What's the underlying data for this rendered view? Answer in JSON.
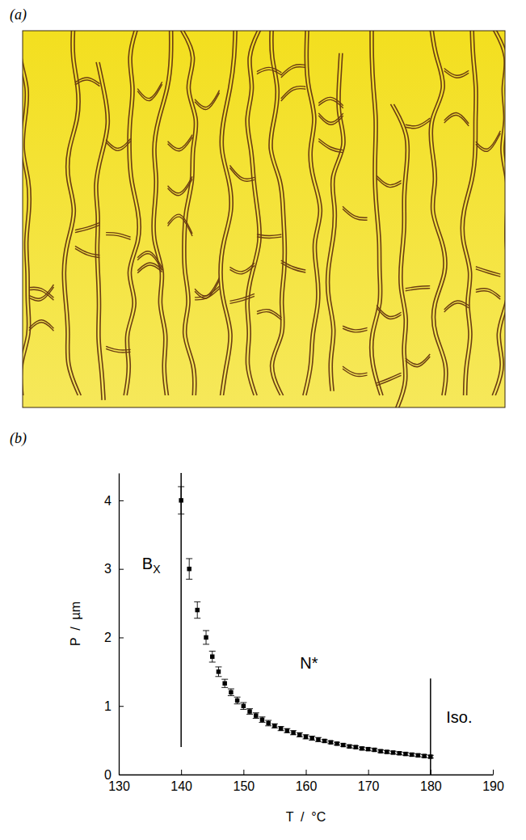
{
  "panel_a": {
    "label": "(a)"
  },
  "chart_data": {
    "type": "scatter",
    "title": "(b)",
    "x_label": "T  /  °C",
    "y_label": "P  /  µm",
    "xlim": [
      130,
      190
    ],
    "xticks": [
      130,
      140,
      150,
      160,
      170,
      180,
      190
    ],
    "ylim": [
      0,
      4.4
    ],
    "yticks": [
      0,
      1,
      2,
      3,
      4
    ],
    "marker": "square",
    "color": "#000000",
    "x": [
      140,
      141.3,
      142.6,
      144,
      145,
      146,
      147,
      148,
      149,
      150,
      151,
      152,
      153,
      154,
      155,
      156,
      157,
      158,
      159,
      160,
      161,
      162,
      163,
      164,
      165,
      166,
      167,
      168,
      169,
      170,
      171,
      172,
      173,
      174,
      175,
      176,
      177,
      178,
      179,
      180
    ],
    "values": [
      4.0,
      3.0,
      2.4,
      2.0,
      1.72,
      1.5,
      1.33,
      1.2,
      1.08,
      1.0,
      0.92,
      0.86,
      0.8,
      0.75,
      0.71,
      0.67,
      0.64,
      0.61,
      0.58,
      0.55,
      0.53,
      0.51,
      0.49,
      0.47,
      0.45,
      0.43,
      0.41,
      0.4,
      0.38,
      0.37,
      0.36,
      0.34,
      0.33,
      0.32,
      0.31,
      0.3,
      0.29,
      0.28,
      0.27,
      0.26
    ],
    "errors": [
      0.2,
      0.15,
      0.12,
      0.1,
      0.08,
      0.07,
      0.06,
      0.05,
      0.05,
      0.05,
      0.04,
      0.04,
      0.04,
      0.04,
      0.03,
      0.03,
      0.03,
      0.03,
      0.03,
      0.03,
      0.03,
      0.03,
      0.02,
      0.02,
      0.02,
      0.02,
      0.02,
      0.02,
      0.02,
      0.02,
      0.02,
      0.02,
      0.02,
      0.02,
      0.02,
      0.02,
      0.02,
      0.02,
      0.02,
      0.02
    ],
    "phase_boundaries": [
      {
        "x": 140,
        "y": [
          0.4,
          4.4
        ]
      },
      {
        "x": 180,
        "y": [
          0,
          1.4
        ]
      }
    ],
    "annotations": [
      {
        "text": "B",
        "subscript": "X",
        "x": 135.2,
        "y": 3.0
      },
      {
        "text": "N*",
        "x": 160.5,
        "y": 1.55
      },
      {
        "text": "Iso.",
        "x": 184.6,
        "y": 0.75
      }
    ]
  }
}
